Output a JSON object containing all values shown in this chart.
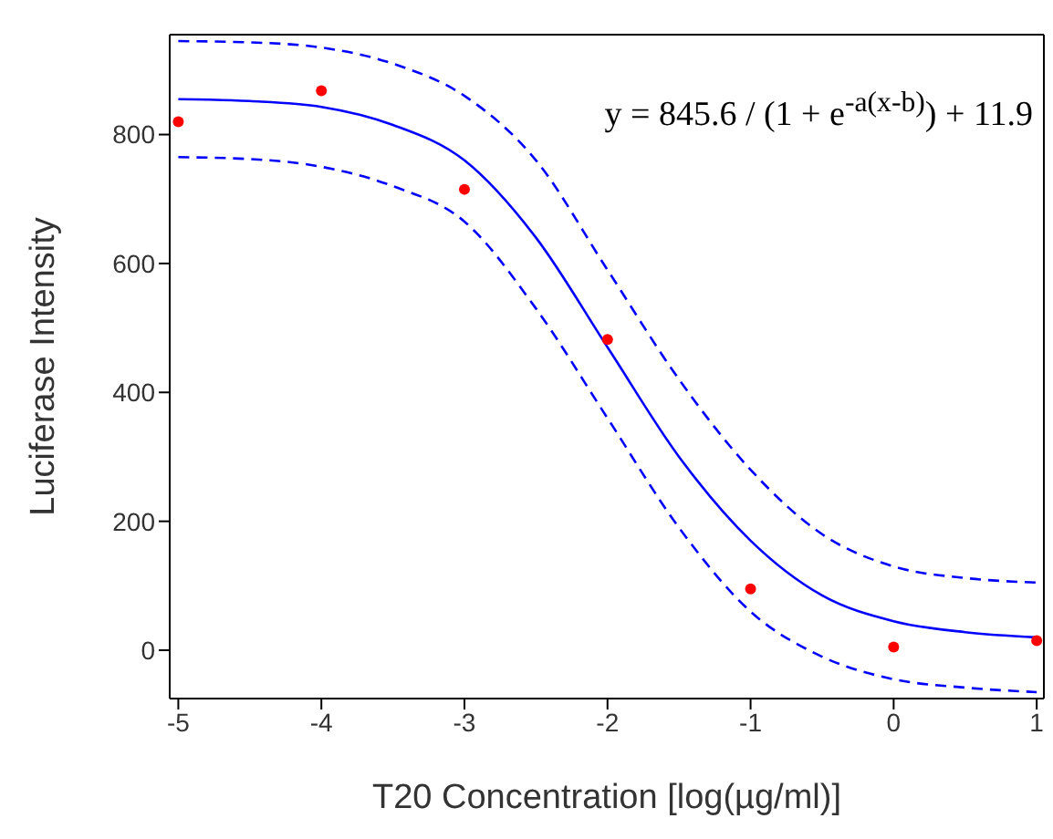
{
  "chart_data": {
    "type": "scatter",
    "xlabel": "T20 Concentration [log(µg/ml)]",
    "ylabel": "Luciferase Intensity",
    "annotations": [
      "y = 845.6 / (1 + e$^{-a(x-b)}$) + 11.9"
    ],
    "xlim": [
      -5.06,
      1.05
    ],
    "xticks": [
      -5,
      -4,
      -3,
      -2,
      -1,
      0,
      1
    ],
    "ylim": [
      -75,
      955
    ],
    "yticks": [
      0,
      200,
      400,
      600,
      800
    ],
    "series": [
      {
        "color": "#ff0000",
        "marker": "circle",
        "x": [
          -5,
          -4,
          -3,
          -2,
          -1,
          0,
          1
        ],
        "values": [
          820,
          868,
          715,
          482,
          95,
          5,
          15
        ]
      },
      {
        "type": "line",
        "color": "#0000ff",
        "line_style": "solid",
        "marker": "none",
        "x": [
          -5,
          -4.5,
          -4,
          -3.5,
          -3,
          -2.5,
          -2,
          -1.5,
          -1,
          -0.5,
          0,
          0.5,
          1
        ],
        "values": [
          855,
          852,
          843,
          815,
          760,
          640,
          470,
          300,
          170,
          85,
          45,
          28,
          20
        ]
      },
      {
        "type": "line",
        "color": "#0000ff",
        "line_style": "dashed",
        "marker": "none",
        "x": [
          -5,
          -4.5,
          -4,
          -3.5,
          -3,
          -2.5,
          -2,
          -1.5,
          -1,
          -0.5,
          0,
          0.5,
          1
        ],
        "values": [
          945,
          943,
          935,
          910,
          860,
          760,
          590,
          420,
          280,
          180,
          130,
          112,
          105
        ]
      },
      {
        "type": "line",
        "color": "#0000ff",
        "line_style": "dashed",
        "marker": "none",
        "x": [
          -5,
          -4.5,
          -4,
          -3.5,
          -3,
          -2.5,
          -2,
          -1.5,
          -1,
          -0.5,
          0,
          0.5,
          1
        ],
        "values": [
          765,
          762,
          750,
          720,
          665,
          530,
          360,
          190,
          60,
          -10,
          -45,
          -58,
          -65
        ]
      }
    ]
  }
}
